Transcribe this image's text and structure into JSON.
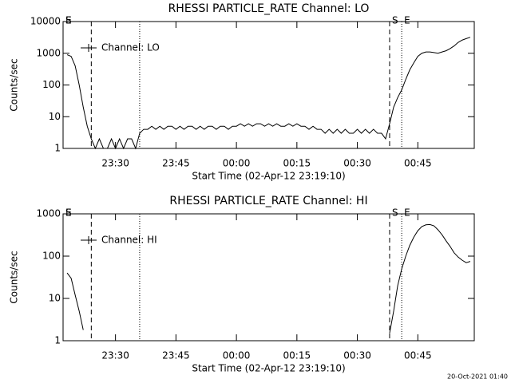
{
  "chart_data": [
    {
      "type": "line",
      "title": "RHESSI PARTICLE_RATE Channel: LO",
      "xlabel": "Start Time (02-Apr-12 23:19:10)",
      "ylabel": "Counts/sec",
      "x": [
        "23:18",
        "23:19",
        "23:20",
        "23:21",
        "23:22",
        "23:23",
        "23:24",
        "23:25",
        "23:26",
        "23:27",
        "23:28",
        "23:29",
        "23:30",
        "23:31",
        "23:32",
        "23:33",
        "23:34",
        "23:35",
        "23:36",
        "23:37",
        "23:38",
        "23:39",
        "23:40",
        "23:41",
        "23:42",
        "23:43",
        "23:44",
        "23:45",
        "23:46",
        "23:47",
        "23:48",
        "23:49",
        "23:50",
        "23:51",
        "23:52",
        "23:53",
        "23:54",
        "23:55",
        "23:56",
        "23:57",
        "23:58",
        "23:59",
        "00:00",
        "00:01",
        "00:02",
        "00:03",
        "00:04",
        "00:05",
        "00:06",
        "00:07",
        "00:08",
        "00:09",
        "00:10",
        "00:11",
        "00:12",
        "00:13",
        "00:14",
        "00:15",
        "00:16",
        "00:17",
        "00:18",
        "00:19",
        "00:20",
        "00:21",
        "00:22",
        "00:23",
        "00:24",
        "00:25",
        "00:26",
        "00:27",
        "00:28",
        "00:29",
        "00:30",
        "00:31",
        "00:32",
        "00:33",
        "00:34",
        "00:35",
        "00:36",
        "00:37",
        "00:38",
        "00:39",
        "00:40",
        "00:41",
        "00:42",
        "00:43",
        "00:44",
        "00:45",
        "00:46",
        "00:47",
        "00:48",
        "00:49",
        "00:50",
        "00:51",
        "00:52",
        "00:53",
        "00:54",
        "00:55",
        "00:56",
        "00:57",
        "00:58"
      ],
      "series": [
        {
          "name": "Channel: LO",
          "color": "#000000",
          "values": [
            900,
            800,
            400,
            100,
            20,
            5,
            2,
            1,
            2,
            1,
            1,
            2,
            1,
            2,
            1,
            2,
            2,
            1,
            3,
            4,
            4,
            5,
            4,
            5,
            4,
            5,
            5,
            4,
            5,
            4,
            5,
            5,
            4,
            5,
            4,
            5,
            5,
            4,
            5,
            5,
            4,
            5,
            5,
            6,
            5,
            6,
            5,
            6,
            6,
            5,
            6,
            5,
            6,
            5,
            5,
            6,
            5,
            6,
            5,
            5,
            4,
            5,
            4,
            4,
            3,
            4,
            3,
            4,
            3,
            4,
            3,
            3,
            4,
            3,
            4,
            3,
            4,
            3,
            3,
            2,
            6,
            20,
            40,
            70,
            150,
            300,
            500,
            800,
            1000,
            1100,
            1100,
            1050,
            1000,
            1100,
            1200,
            1400,
            1700,
            2200,
            2600,
            2900,
            3200
          ]
        }
      ],
      "xlim": [
        "23:17",
        "00:59"
      ],
      "xticks": [
        "23:30",
        "23:45",
        "00:00",
        "00:15",
        "00:30",
        "00:45"
      ],
      "ylim": [
        1,
        10000
      ],
      "yticks": [
        1,
        10,
        100,
        1000,
        10000
      ],
      "yscale": "log",
      "markers": [
        {
          "x": "23:24",
          "style": "dashed"
        },
        {
          "x": "23:36",
          "style": "dotted"
        },
        {
          "x": "00:38",
          "style": "dashed"
        },
        {
          "x": "00:41",
          "style": "dotted"
        },
        {
          "x": "00:59",
          "style": "dashdot"
        }
      ],
      "flags": [
        {
          "text": "S",
          "x": "23:17"
        },
        {
          "text": "E",
          "x": "23:17"
        },
        {
          "text": "S",
          "x": "00:38"
        },
        {
          "text": "E",
          "x": "00:41"
        }
      ]
    },
    {
      "type": "line",
      "title": "RHESSI PARTICLE_RATE Channel: HI",
      "xlabel": "Start Time (02-Apr-12 23:19:10)",
      "ylabel": "Counts/sec",
      "x": [
        "23:18",
        "23:19",
        "23:20",
        "23:21",
        "23:22",
        "23:23",
        "00:38",
        "00:39",
        "00:40",
        "00:41",
        "00:42",
        "00:43",
        "00:44",
        "00:45",
        "00:46",
        "00:47",
        "00:48",
        "00:49",
        "00:50",
        "00:51",
        "00:52",
        "00:53",
        "00:54",
        "00:55",
        "00:56",
        "00:57",
        "00:58"
      ],
      "series": [
        {
          "name": "Channel: HI",
          "color": "#000000",
          "values": [
            40,
            30,
            12,
            5,
            1.8,
            null,
            1.5,
            5,
            20,
            50,
            100,
            180,
            280,
            400,
            500,
            550,
            560,
            520,
            420,
            320,
            230,
            170,
            120,
            95,
            80,
            70,
            75
          ]
        }
      ],
      "xlim": [
        "23:17",
        "00:59"
      ],
      "xticks": [
        "23:30",
        "23:45",
        "00:00",
        "00:15",
        "00:30",
        "00:45"
      ],
      "ylim": [
        1,
        1000
      ],
      "yticks": [
        1,
        10,
        100,
        1000
      ],
      "yscale": "log",
      "markers": [
        {
          "x": "23:24",
          "style": "dashed"
        },
        {
          "x": "23:36",
          "style": "dotted"
        },
        {
          "x": "00:38",
          "style": "dashed"
        },
        {
          "x": "00:41",
          "style": "dotted"
        },
        {
          "x": "00:59",
          "style": "dashdot"
        }
      ],
      "flags": [
        {
          "text": "S",
          "x": "23:17"
        },
        {
          "text": "E",
          "x": "23:17"
        },
        {
          "text": "S",
          "x": "00:38"
        },
        {
          "text": "E",
          "x": "00:41"
        }
      ]
    }
  ],
  "footer": "20-Oct-2021 01:40"
}
